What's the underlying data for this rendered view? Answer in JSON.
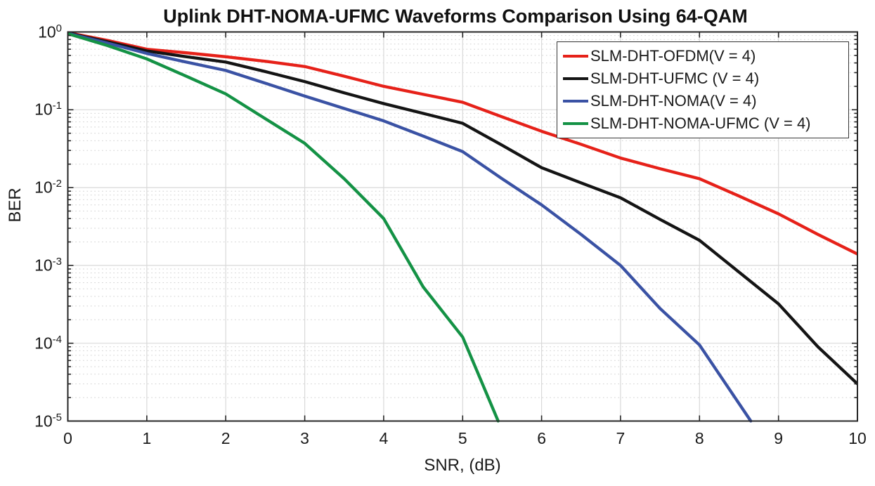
{
  "chart_data": {
    "type": "line",
    "title": "Uplink DHT-NOMA-UFMC Waveforms Comparison Using 64-QAM",
    "xlabel": "SNR, (dB)",
    "ylabel": "BER",
    "x_axis": {
      "min": 0,
      "max": 10,
      "ticks": [
        0,
        1,
        2,
        3,
        4,
        5,
        6,
        7,
        8,
        9,
        10
      ]
    },
    "y_axis": {
      "scale": "log",
      "min": 1e-05,
      "max": 1,
      "tick_exponents": [
        0,
        -1,
        -2,
        -3,
        -4,
        -5
      ]
    },
    "grid": {
      "major": true,
      "minor_horizontal_dotted": true
    },
    "legend_position": "top-right",
    "frame_color": "#262626",
    "major_grid_color": "#d9d9d9",
    "minor_grid_color": "#cfcfcf",
    "series": [
      {
        "name": "SLM-DHT-OFDM(V = 4)",
        "color": "#e62119",
        "points": [
          [
            0,
            0.98
          ],
          [
            0.5,
            0.78
          ],
          [
            1,
            0.6
          ],
          [
            1.5,
            0.54
          ],
          [
            2,
            0.48
          ],
          [
            2.5,
            0.42
          ],
          [
            3,
            0.36
          ],
          [
            3.5,
            0.27
          ],
          [
            4,
            0.2
          ],
          [
            4.5,
            0.158
          ],
          [
            5,
            0.125
          ],
          [
            5.5,
            0.081
          ],
          [
            6,
            0.053
          ],
          [
            6.5,
            0.036
          ],
          [
            7,
            0.024
          ],
          [
            7.5,
            0.0175
          ],
          [
            8,
            0.013
          ],
          [
            8.5,
            0.0078
          ],
          [
            9,
            0.0046
          ],
          [
            9.5,
            0.0025
          ],
          [
            10,
            0.0014
          ]
        ]
      },
      {
        "name": "SLM-DHT-UFMC (V = 4)",
        "color": "#141414",
        "points": [
          [
            0,
            0.97
          ],
          [
            0.5,
            0.75
          ],
          [
            1,
            0.57
          ],
          [
            1.5,
            0.48
          ],
          [
            2,
            0.41
          ],
          [
            2.5,
            0.31
          ],
          [
            3,
            0.23
          ],
          [
            3.5,
            0.165
          ],
          [
            4,
            0.12
          ],
          [
            4.5,
            0.09
          ],
          [
            5,
            0.067
          ],
          [
            5.5,
            0.035
          ],
          [
            6,
            0.018
          ],
          [
            6.5,
            0.0115
          ],
          [
            7,
            0.0074
          ],
          [
            7.5,
            0.0039
          ],
          [
            8,
            0.0021
          ],
          [
            8.5,
            0.00082
          ],
          [
            9,
            0.00032
          ],
          [
            9.5,
            9e-05
          ],
          [
            10,
            3e-05
          ]
        ]
      },
      {
        "name": "SLM-DHT-NOMA(V = 4)",
        "color": "#3a52a4",
        "points": [
          [
            0,
            0.96
          ],
          [
            0.5,
            0.72
          ],
          [
            1,
            0.53
          ],
          [
            1.5,
            0.41
          ],
          [
            2,
            0.32
          ],
          [
            2.5,
            0.22
          ],
          [
            3,
            0.15
          ],
          [
            3.5,
            0.104
          ],
          [
            4,
            0.072
          ],
          [
            4.5,
            0.046
          ],
          [
            5,
            0.029
          ],
          [
            5.5,
            0.013
          ],
          [
            6,
            0.006
          ],
          [
            6.5,
            0.0025
          ],
          [
            7,
            0.001
          ],
          [
            7.5,
            0.00028
          ],
          [
            8,
            9.5e-05
          ],
          [
            8.65,
            1e-05
          ]
        ]
      },
      {
        "name": "SLM-DHT-NOMA-UFMC (V = 4)",
        "color": "#149245",
        "points": [
          [
            0,
            0.95
          ],
          [
            0.5,
            0.67
          ],
          [
            1,
            0.45
          ],
          [
            1.5,
            0.27
          ],
          [
            2,
            0.16
          ],
          [
            2.5,
            0.077
          ],
          [
            3,
            0.037
          ],
          [
            3.5,
            0.013
          ],
          [
            4,
            0.004
          ],
          [
            4.5,
            0.00053
          ],
          [
            5,
            0.00012
          ],
          [
            5.45,
            1e-05
          ]
        ]
      }
    ]
  }
}
